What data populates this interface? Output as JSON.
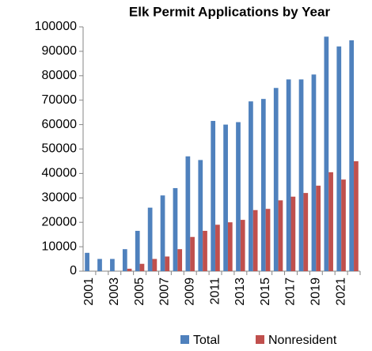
{
  "chart_data": {
    "type": "bar",
    "title": "Elk Permit Applications by Year",
    "categories": [
      "2001",
      null,
      "2003",
      null,
      "2005",
      null,
      "2007",
      null,
      "2009",
      null,
      "2011",
      null,
      "2013",
      null,
      "2015",
      null,
      "2017",
      null,
      "2019",
      null,
      "2021",
      null
    ],
    "series": [
      {
        "name": "Total",
        "color": "#4f81bd",
        "values": [
          7500,
          5000,
          5000,
          9000,
          16500,
          26000,
          31000,
          34000,
          47000,
          45500,
          61500,
          60000,
          61000,
          69500,
          70500,
          75000,
          78500,
          78500,
          80500,
          96000,
          92000,
          94500
        ]
      },
      {
        "name": "Nonresident",
        "color": "#c0504d",
        "values": [
          0,
          0,
          0,
          1000,
          3000,
          5000,
          6000,
          9000,
          14000,
          16500,
          19000,
          20000,
          21000,
          25000,
          25500,
          29000,
          30500,
          32000,
          35000,
          40500,
          37500,
          45000
        ]
      }
    ],
    "ylim": [
      0,
      100000
    ],
    "yticks": [
      0,
      10000,
      20000,
      30000,
      40000,
      50000,
      60000,
      70000,
      80000,
      90000,
      100000
    ],
    "legend": "bottom"
  }
}
